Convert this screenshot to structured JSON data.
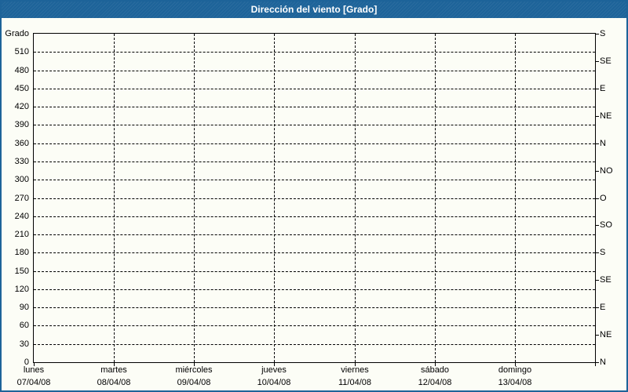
{
  "header": {
    "title": "Dirección del viento [Grado]"
  },
  "colors": {
    "title_bar_bg": "#1d6399",
    "title_text": "#ffffff",
    "frame_border": "#1d6399",
    "page_bg": "#fcfdf6",
    "axis_line": "#000000",
    "grid_line": "#000000",
    "label_text": "#000000"
  },
  "chart_data": {
    "type": "line",
    "title": "Dirección del viento [Grado]",
    "grid": true,
    "series": [],
    "y_axis_left": {
      "title": "Grado",
      "min": 0,
      "max": 540,
      "step": 30,
      "tick_labels": [
        "0",
        "30",
        "60",
        "90",
        "120",
        "150",
        "180",
        "210",
        "240",
        "270",
        "300",
        "330",
        "360",
        "390",
        "420",
        "450",
        "480",
        "510"
      ]
    },
    "y_axis_right": {
      "step": 45,
      "ticks": [
        {
          "value": 540,
          "label": "S"
        },
        {
          "value": 495,
          "label": "SE"
        },
        {
          "value": 450,
          "label": "E"
        },
        {
          "value": 405,
          "label": "NE"
        },
        {
          "value": 360,
          "label": "N"
        },
        {
          "value": 315,
          "label": "NO"
        },
        {
          "value": 270,
          "label": "O"
        },
        {
          "value": 225,
          "label": "SO"
        },
        {
          "value": 180,
          "label": "S"
        },
        {
          "value": 135,
          "label": "SE"
        },
        {
          "value": 90,
          "label": "E"
        },
        {
          "value": 45,
          "label": "NE"
        },
        {
          "value": 0,
          "label": "N"
        }
      ]
    },
    "x_axis": {
      "days": [
        {
          "name": "lunes",
          "date": "07/04/08"
        },
        {
          "name": "martes",
          "date": "08/04/08"
        },
        {
          "name": "miércoles",
          "date": "09/04/08"
        },
        {
          "name": "jueves",
          "date": "10/04/08"
        },
        {
          "name": "viernes",
          "date": "11/04/08"
        },
        {
          "name": "sábado",
          "date": "12/04/08"
        },
        {
          "name": "domingo",
          "date": "13/04/08"
        }
      ]
    }
  }
}
